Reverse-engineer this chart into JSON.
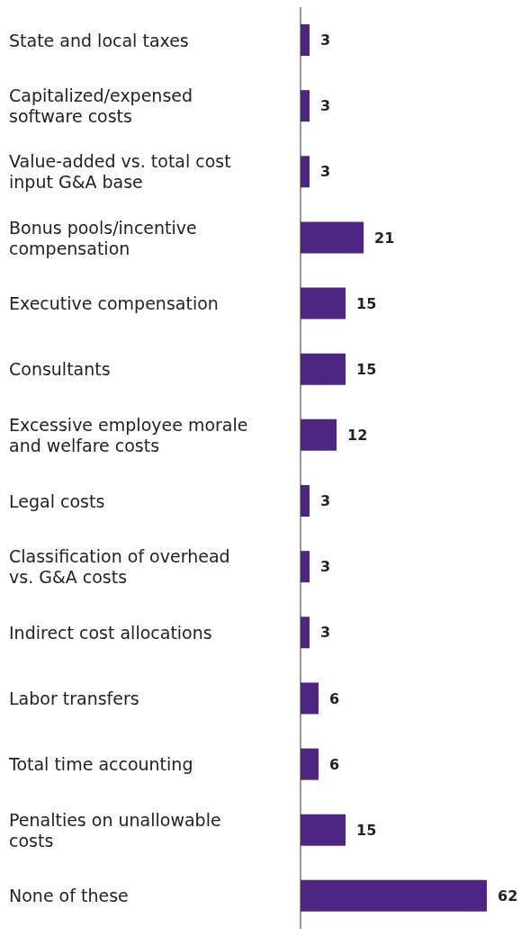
{
  "chart_data": {
    "type": "bar",
    "orientation": "horizontal",
    "categories": [
      "State and local taxes",
      "Capitalized/expensed software costs",
      "Value-added vs. total cost input G&A base",
      "Bonus pools/incentive compensation",
      "Executive compensation",
      "Consultants",
      "Excessive employee morale and welfare costs",
      "Legal costs",
      "Classification of overhead vs. G&A costs",
      "Indirect cost allocations",
      "Labor transfers",
      "Total time accounting",
      "Penalties on unallowable costs",
      "None of these"
    ],
    "values": [
      3,
      3,
      3,
      21,
      15,
      15,
      12,
      3,
      3,
      3,
      6,
      6,
      15,
      62
    ],
    "color": "#4f2583",
    "data_labels": true
  }
}
